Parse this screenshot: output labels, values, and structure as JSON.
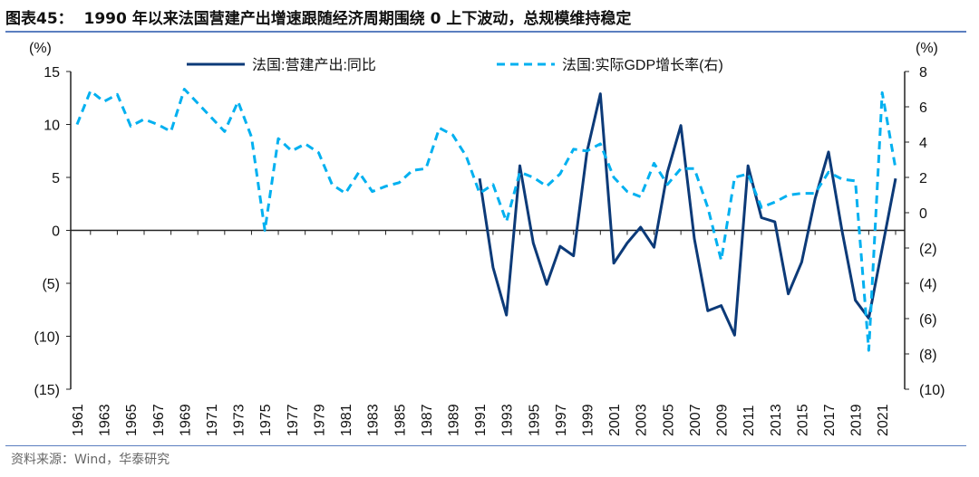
{
  "title": "图表45：  1990 年以来法国营建产出增速跟随经济周期围绕 0 上下波动，总规模维持稳定",
  "source": "资料来源：Wind，华泰研究",
  "colors": {
    "construction": "#0c3a78",
    "gdp": "#00b0f0",
    "rule": "#5b7fc0"
  },
  "chart_data": {
    "type": "line",
    "title": "",
    "left_unit": "(%)",
    "right_unit": "(%)",
    "left_ylim": [
      -15,
      15
    ],
    "left_ticks": [
      15,
      10,
      5,
      0,
      -5,
      -10,
      -15
    ],
    "left_tick_labels": [
      "15",
      "10",
      "5",
      "0",
      "(5)",
      "(10)",
      "(15)"
    ],
    "right_ylim": [
      -10,
      8
    ],
    "right_ticks": [
      8,
      6,
      4,
      2,
      0,
      -2,
      -4,
      -6,
      -8,
      -10
    ],
    "right_tick_labels": [
      "8",
      "6",
      "4",
      "2",
      "0",
      "(2)",
      "(4)",
      "(6)",
      "(8)",
      "(10)"
    ],
    "x_range": [
      1961,
      2022
    ],
    "x_tick_labels": [
      "1961",
      "1963",
      "1965",
      "1967",
      "1969",
      "1971",
      "1973",
      "1975",
      "1977",
      "1979",
      "1981",
      "1983",
      "1985",
      "1987",
      "1989",
      "1991",
      "1993",
      "1995",
      "1997",
      "1999",
      "2001",
      "2003",
      "2005",
      "2007",
      "2009",
      "2011",
      "2013",
      "2015",
      "2017",
      "2019",
      "2021"
    ],
    "legend_position": "top",
    "grid": false,
    "series": [
      {
        "name": "法国:营建产出:同比",
        "axis": "left",
        "style": "solid",
        "x": [
          1991,
          1992,
          1993,
          1994,
          1995,
          1996,
          1997,
          1998,
          1999,
          2000,
          2001,
          2002,
          2003,
          2004,
          2005,
          2006,
          2007,
          2008,
          2009,
          2010,
          2011,
          2012,
          2013,
          2014,
          2015,
          2016,
          2017,
          2018,
          2019,
          2020,
          2021,
          2022
        ],
        "values": [
          4.9,
          -3.5,
          -8.0,
          6.1,
          -1.2,
          -5.1,
          -1.5,
          -2.4,
          7.4,
          12.9,
          -3.1,
          -1.2,
          0.3,
          -1.6,
          5.5,
          9.9,
          -0.8,
          -7.6,
          -7.1,
          -9.9,
          6.1,
          1.2,
          0.8,
          -6.0,
          -3.0,
          3.0,
          7.4,
          0.0,
          -6.6,
          -8.3,
          -1.7,
          4.9
        ]
      },
      {
        "name": "法国:实际GDP增长率(右)",
        "axis": "right",
        "style": "dashed",
        "x": [
          1961,
          1962,
          1963,
          1964,
          1965,
          1966,
          1967,
          1968,
          1969,
          1970,
          1971,
          1972,
          1973,
          1974,
          1975,
          1976,
          1977,
          1978,
          1979,
          1980,
          1981,
          1982,
          1983,
          1984,
          1985,
          1986,
          1987,
          1988,
          1989,
          1990,
          1991,
          1992,
          1993,
          1994,
          1995,
          1996,
          1997,
          1998,
          1999,
          2000,
          2001,
          2002,
          2003,
          2004,
          2005,
          2006,
          2007,
          2008,
          2009,
          2010,
          2011,
          2012,
          2013,
          2014,
          2015,
          2016,
          2017,
          2018,
          2019,
          2020,
          2021,
          2022
        ],
        "values": [
          5.0,
          6.9,
          6.3,
          6.7,
          4.9,
          5.3,
          5.0,
          4.6,
          7.0,
          6.2,
          5.4,
          4.6,
          6.3,
          4.3,
          -1.0,
          4.2,
          3.5,
          3.9,
          3.4,
          1.6,
          1.1,
          2.3,
          1.2,
          1.5,
          1.7,
          2.4,
          2.5,
          4.8,
          4.4,
          3.2,
          1.1,
          1.6,
          -0.5,
          2.3,
          2.0,
          1.5,
          2.2,
          3.6,
          3.5,
          3.9,
          2.0,
          1.2,
          0.9,
          2.8,
          1.6,
          2.5,
          2.5,
          0.3,
          -2.7,
          2.0,
          2.2,
          0.3,
          0.6,
          1.0,
          1.1,
          1.1,
          2.3,
          1.9,
          1.8,
          -7.8,
          6.8,
          2.5
        ]
      }
    ]
  }
}
